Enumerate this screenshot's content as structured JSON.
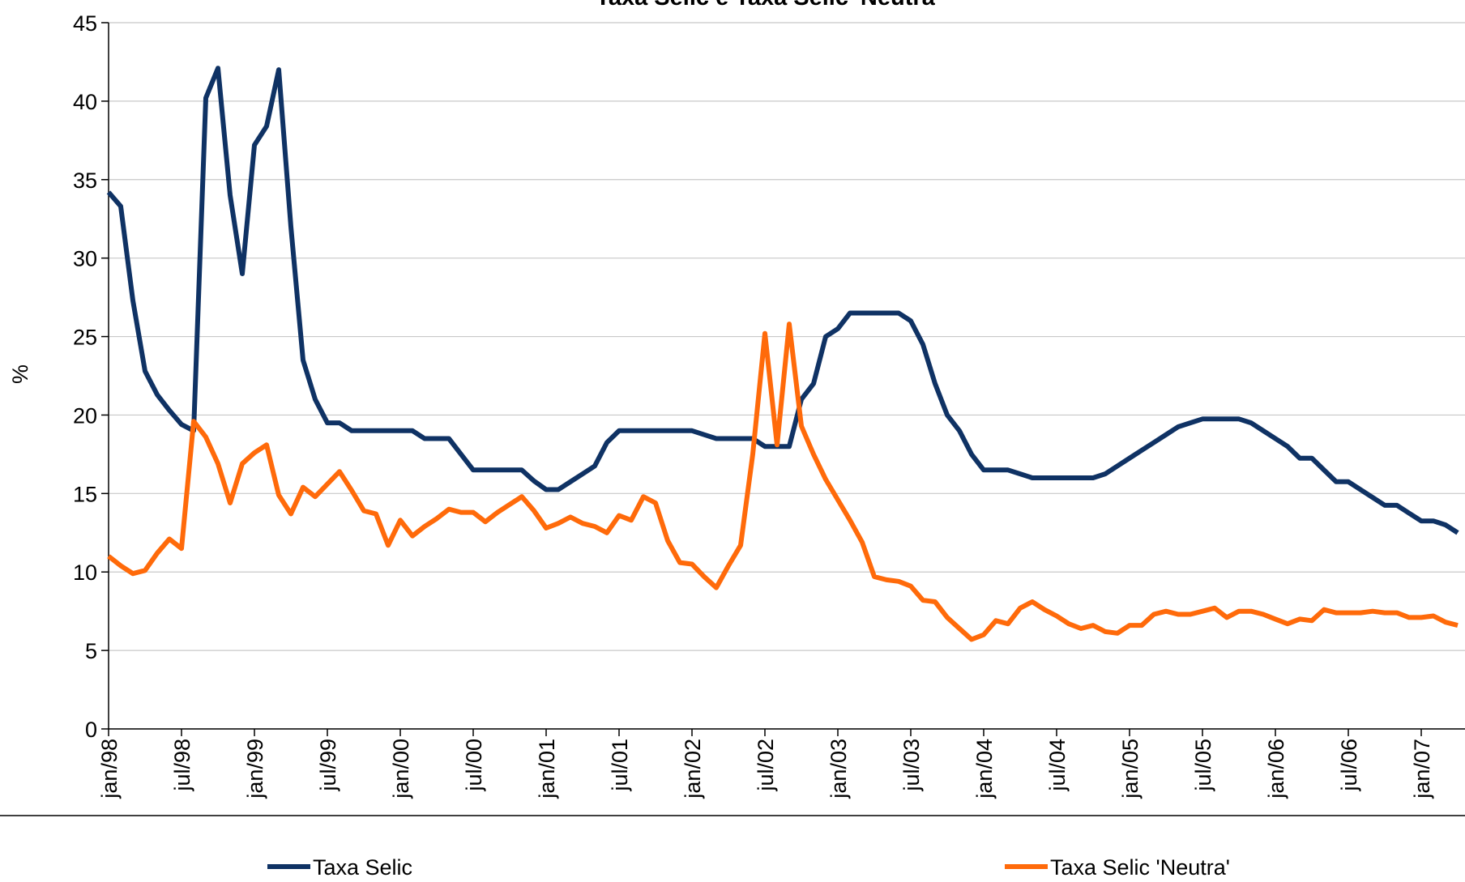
{
  "chart_data": {
    "type": "line",
    "title": "Taxa Selic e Taxa Selic 'Neutra'",
    "y_label": "%",
    "categories": [
      "jan/98",
      null,
      null,
      null,
      null,
      null,
      "jul/98",
      null,
      null,
      null,
      null,
      null,
      "jan/99",
      null,
      null,
      null,
      null,
      null,
      "jul/99",
      null,
      null,
      null,
      null,
      null,
      "jan/00",
      null,
      null,
      null,
      null,
      null,
      "jul/00",
      null,
      null,
      null,
      null,
      null,
      "jan/01",
      null,
      null,
      null,
      null,
      null,
      "jul/01",
      null,
      null,
      null,
      null,
      null,
      "jan/02",
      null,
      null,
      null,
      null,
      null,
      "jul/02",
      null,
      null,
      null,
      null,
      null,
      "jan/03",
      null,
      null,
      null,
      null,
      null,
      "jul/03",
      null,
      null,
      null,
      null,
      null,
      "jan/04",
      null,
      null,
      null,
      null,
      null,
      "jul/04",
      null,
      null,
      null,
      null,
      null,
      "jan/05",
      null,
      null,
      null,
      null,
      null,
      "jul/05",
      null,
      null,
      null,
      null,
      null,
      "jan/06",
      null,
      null,
      null,
      null,
      null,
      "jul/06",
      null,
      null,
      null,
      null,
      null,
      "jan/07",
      null,
      null,
      null
    ],
    "series": [
      {
        "name": "Taxa Selic",
        "color": "#0f3264",
        "values": [
          34.2,
          33.3,
          27.3,
          22.8,
          21.3,
          20.3,
          19.4,
          19.0,
          40.2,
          42.1,
          34,
          29,
          37.2,
          38.4,
          42,
          32,
          23.5,
          21,
          19.5,
          19.5,
          19,
          19,
          19,
          19,
          19,
          19,
          18.5,
          18.5,
          18.5,
          17.5,
          16.5,
          16.5,
          16.5,
          16.5,
          16.5,
          15.8,
          15.25,
          15.25,
          15.75,
          16.25,
          16.75,
          18.25,
          19,
          19,
          19,
          19,
          19,
          19,
          19,
          18.75,
          18.5,
          18.5,
          18.5,
          18.5,
          18,
          18,
          18,
          21,
          22,
          25,
          25.5,
          26.5,
          26.5,
          26.5,
          26.5,
          26.5,
          26,
          24.5,
          22,
          20,
          19,
          17.5,
          16.5,
          16.5,
          16.5,
          16.25,
          16,
          16,
          16,
          16,
          16,
          16,
          16.25,
          16.75,
          17.25,
          17.75,
          18.25,
          18.75,
          19.25,
          19.5,
          19.75,
          19.75,
          19.75,
          19.75,
          19.5,
          19,
          18.5,
          18,
          17.25,
          17.25,
          16.5,
          15.75,
          15.75,
          15.25,
          14.75,
          14.25,
          14.25,
          13.75,
          13.25,
          13.25,
          13,
          12.5
        ]
      },
      {
        "name": "Taxa Selic 'Neutra'",
        "color": "#ff6a0a",
        "values": [
          11,
          10.4,
          9.9,
          10.1,
          11.2,
          12.1,
          11.5,
          19.6,
          18.6,
          16.9,
          14.4,
          16.9,
          17.6,
          18.1,
          14.9,
          13.7,
          15.4,
          14.8,
          15.6,
          16.4,
          15.2,
          13.9,
          13.7,
          11.7,
          13.3,
          12.3,
          12.9,
          13.4,
          14,
          13.8,
          13.8,
          13.2,
          13.8,
          14.3,
          14.8,
          13.9,
          12.8,
          13.1,
          13.5,
          13.1,
          12.9,
          12.5,
          13.6,
          13.3,
          14.8,
          14.4,
          12,
          10.6,
          10.5,
          9.7,
          9,
          10.4,
          11.7,
          17.5,
          25.2,
          18.1,
          25.8,
          19.3,
          17.5,
          15.9,
          14.6,
          13.3,
          11.9,
          9.7,
          9.5,
          9.4,
          9.1,
          8.2,
          8.1,
          7.1,
          6.4,
          5.7,
          6,
          6.9,
          6.7,
          7.7,
          8.1,
          7.6,
          7.2,
          6.7,
          6.4,
          6.6,
          6.2,
          6.1,
          6.6,
          6.6,
          7.3,
          7.5,
          7.3,
          7.3,
          7.5,
          7.7,
          7.1,
          7.5,
          7.5,
          7.3,
          7,
          6.7,
          7,
          6.9,
          7.6,
          7.4,
          7.4,
          7.4,
          7.5,
          7.4,
          7.4,
          7.1,
          7.1,
          7.2,
          6.8,
          6.6
        ]
      }
    ],
    "ylim": [
      0,
      45
    ],
    "yticks": [
      0,
      5,
      10,
      15,
      20,
      25,
      30,
      35,
      40,
      45
    ],
    "grid": true,
    "legend": "bottom"
  }
}
